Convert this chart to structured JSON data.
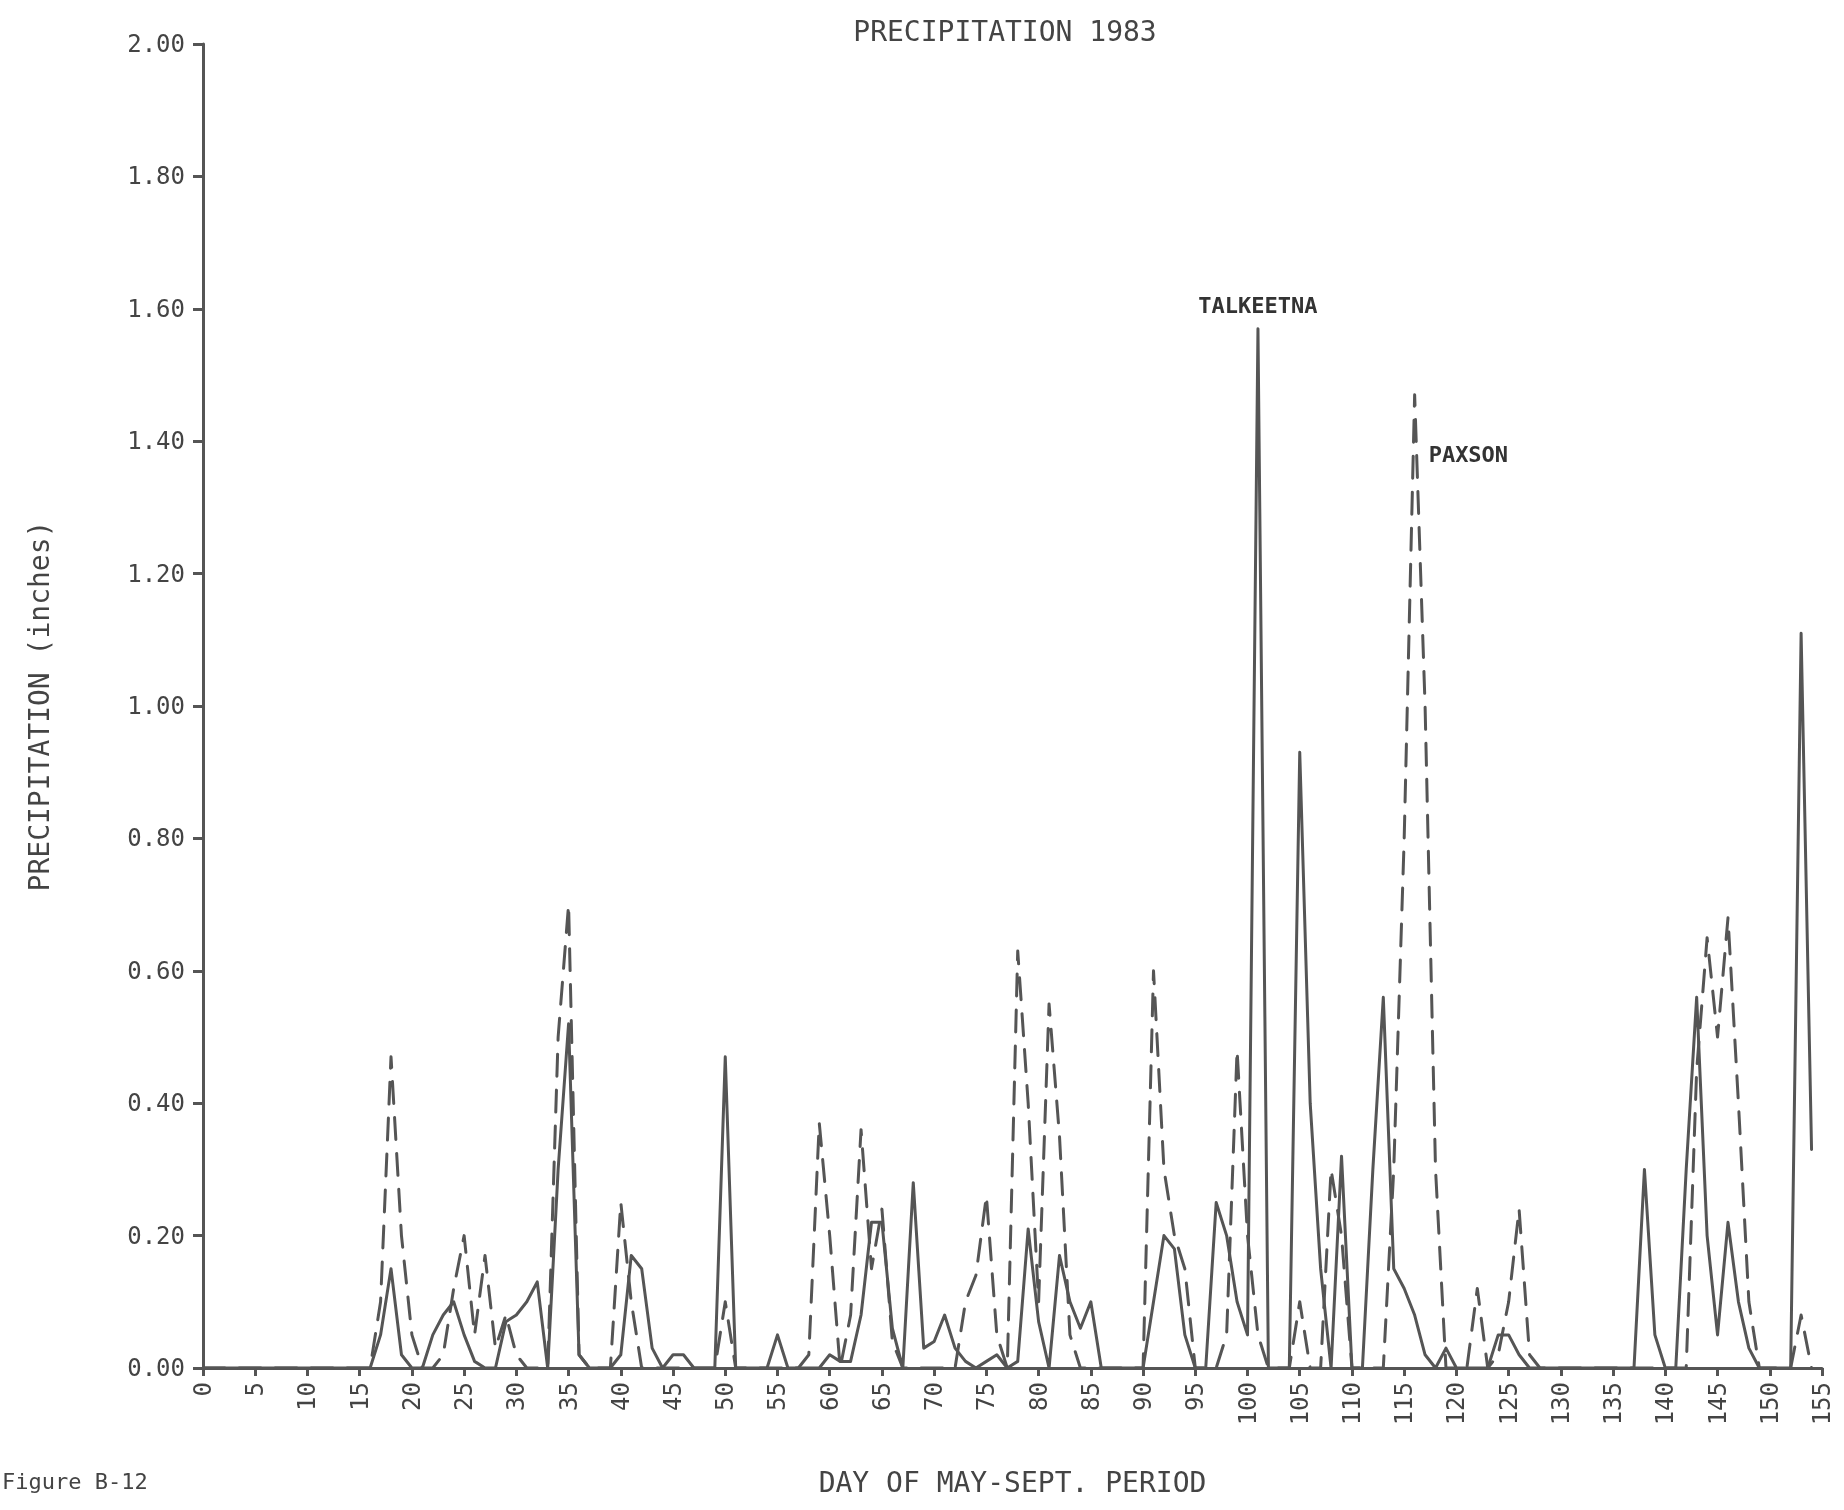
{
  "chart_data": {
    "type": "line",
    "title": "PRECIPITATION 1983",
    "xlabel": "DAY OF MAY-SEPT. PERIOD",
    "ylabel": "PRECIPITATION (inches)",
    "x": [
      0,
      1,
      2,
      3,
      4,
      5,
      6,
      7,
      8,
      9,
      10,
      11,
      12,
      13,
      14,
      15,
      16,
      17,
      18,
      19,
      20,
      21,
      22,
      23,
      24,
      25,
      26,
      27,
      28,
      29,
      30,
      31,
      32,
      33,
      34,
      35,
      36,
      37,
      38,
      39,
      40,
      41,
      42,
      43,
      44,
      45,
      46,
      47,
      48,
      49,
      50,
      51,
      52,
      53,
      54,
      55,
      56,
      57,
      58,
      59,
      60,
      61,
      62,
      63,
      64,
      65,
      66,
      67,
      68,
      69,
      70,
      71,
      72,
      73,
      74,
      75,
      76,
      77,
      78,
      79,
      80,
      81,
      82,
      83,
      84,
      85,
      86,
      87,
      88,
      89,
      90,
      91,
      92,
      93,
      94,
      95,
      96,
      97,
      98,
      99,
      100,
      101,
      102,
      103,
      104,
      105,
      106,
      107,
      108,
      109,
      110,
      111,
      112,
      113,
      114,
      115,
      116,
      117,
      118,
      119,
      120,
      121,
      122,
      123,
      124,
      125,
      126,
      127,
      128,
      129,
      130,
      131,
      132,
      133,
      134,
      135,
      136,
      137,
      138,
      139,
      140,
      141,
      142,
      143,
      144,
      145,
      146,
      147,
      148,
      149,
      150,
      151,
      152,
      153,
      154
    ],
    "series": [
      {
        "name": "TALKEETNA",
        "color": "#555555",
        "line_style": "solid",
        "values": [
          0,
          0,
          0,
          0,
          0,
          0,
          0,
          0,
          0,
          0,
          0,
          0,
          0,
          0,
          0,
          0,
          0,
          0.05,
          0.15,
          0.02,
          0,
          0,
          0.05,
          0.08,
          0.1,
          0.05,
          0.01,
          0,
          0,
          0.07,
          0.08,
          0.1,
          0.13,
          0,
          0.3,
          0.52,
          0.02,
          0,
          0,
          0,
          0.02,
          0.17,
          0.15,
          0.03,
          0,
          0.02,
          0.02,
          0,
          0,
          0,
          0.47,
          0,
          0,
          0,
          0,
          0.05,
          0,
          0,
          0,
          0,
          0.02,
          0.01,
          0.01,
          0.08,
          0.22,
          0.22,
          0.06,
          0,
          0.28,
          0.03,
          0.04,
          0.08,
          0.03,
          0.01,
          0,
          0.01,
          0.02,
          0,
          0.01,
          0.21,
          0.07,
          0,
          0.17,
          0.1,
          0.06,
          0.1,
          0,
          0,
          0,
          0,
          0,
          0.1,
          0.2,
          0.18,
          0.05,
          0,
          0,
          0.25,
          0.2,
          0.1,
          0.05,
          1.57,
          0,
          0,
          0,
          0.93,
          0.4,
          0.15,
          0,
          0.32,
          0,
          0,
          0.3,
          0.56,
          0.15,
          0.12,
          0.08,
          0.02,
          0,
          0.03,
          0,
          0,
          0,
          0,
          0.05,
          0.05,
          0.02,
          0,
          0,
          0,
          0,
          0,
          0,
          0,
          0,
          0,
          0,
          0,
          0.3,
          0.05,
          0,
          0,
          0.3,
          0.56,
          0.2,
          0.05,
          0.22,
          0.1,
          0.03,
          0,
          0,
          0,
          0,
          1.11,
          0.33
        ]
      },
      {
        "name": "PAXSON",
        "color": "#555555",
        "line_style": "dashed",
        "values": [
          0,
          0,
          0,
          0,
          0,
          0,
          0,
          0,
          0,
          0,
          0,
          0,
          0,
          0,
          0,
          0,
          0,
          0.1,
          0.47,
          0.2,
          0.05,
          0,
          0,
          0.02,
          0.12,
          0.2,
          0.05,
          0.17,
          0.03,
          0.08,
          0.02,
          0,
          0,
          0,
          0.5,
          0.7,
          0.02,
          0,
          0,
          0,
          0.25,
          0.1,
          0,
          0,
          0,
          0,
          0,
          0,
          0,
          0,
          0.1,
          0,
          0,
          0,
          0,
          0,
          0,
          0,
          0.02,
          0.37,
          0.2,
          0,
          0.08,
          0.36,
          0.15,
          0.24,
          0.04,
          0,
          0,
          0,
          0,
          0,
          0,
          0.1,
          0.14,
          0.26,
          0.05,
          0,
          0.63,
          0.4,
          0.1,
          0.55,
          0.35,
          0.05,
          0,
          0,
          0,
          0,
          0,
          0,
          0,
          0.6,
          0.3,
          0.2,
          0.15,
          0,
          0,
          0,
          0.05,
          0.48,
          0.2,
          0.05,
          0,
          0,
          0,
          0.1,
          0,
          0,
          0.3,
          0.2,
          0,
          0,
          0,
          0,
          0.3,
          0.8,
          1.47,
          1,
          0.3,
          0,
          0,
          0,
          0.12,
          0,
          0.02,
          0.1,
          0.24,
          0.02,
          0,
          0,
          0,
          0,
          0,
          0,
          0,
          0,
          0,
          0,
          0,
          0,
          0,
          0,
          0,
          0.45,
          0.65,
          0.5,
          0.68,
          0.4,
          0.1,
          0,
          0,
          0,
          0,
          0.08,
          0
        ]
      }
    ],
    "xlim": [
      0,
      155
    ],
    "xticks": [
      0,
      5,
      10,
      15,
      20,
      25,
      30,
      35,
      40,
      45,
      50,
      55,
      60,
      65,
      70,
      75,
      80,
      85,
      90,
      95,
      100,
      105,
      110,
      115,
      120,
      125,
      130,
      135,
      140,
      145,
      150,
      155
    ],
    "ylim": [
      0,
      2
    ],
    "yticks": [
      {
        "value": 0,
        "label": "0.00"
      },
      {
        "value": 0.2,
        "label": "0.20"
      },
      {
        "value": 0.4,
        "label": "0.40"
      },
      {
        "value": 0.6,
        "label": "0.60"
      },
      {
        "value": 0.8,
        "label": "0.80"
      },
      {
        "value": 1,
        "label": "1.00"
      },
      {
        "value": 1.2,
        "label": "1.20"
      },
      {
        "value": 1.4,
        "label": "1.40"
      },
      {
        "value": 1.6,
        "label": "1.60"
      },
      {
        "value": 1.8,
        "label": "1.80"
      },
      {
        "value": 2,
        "label": "2.00"
      }
    ],
    "grid": false,
    "legend": false,
    "marker": "none",
    "annotations": [
      "Figure B-12"
    ]
  }
}
